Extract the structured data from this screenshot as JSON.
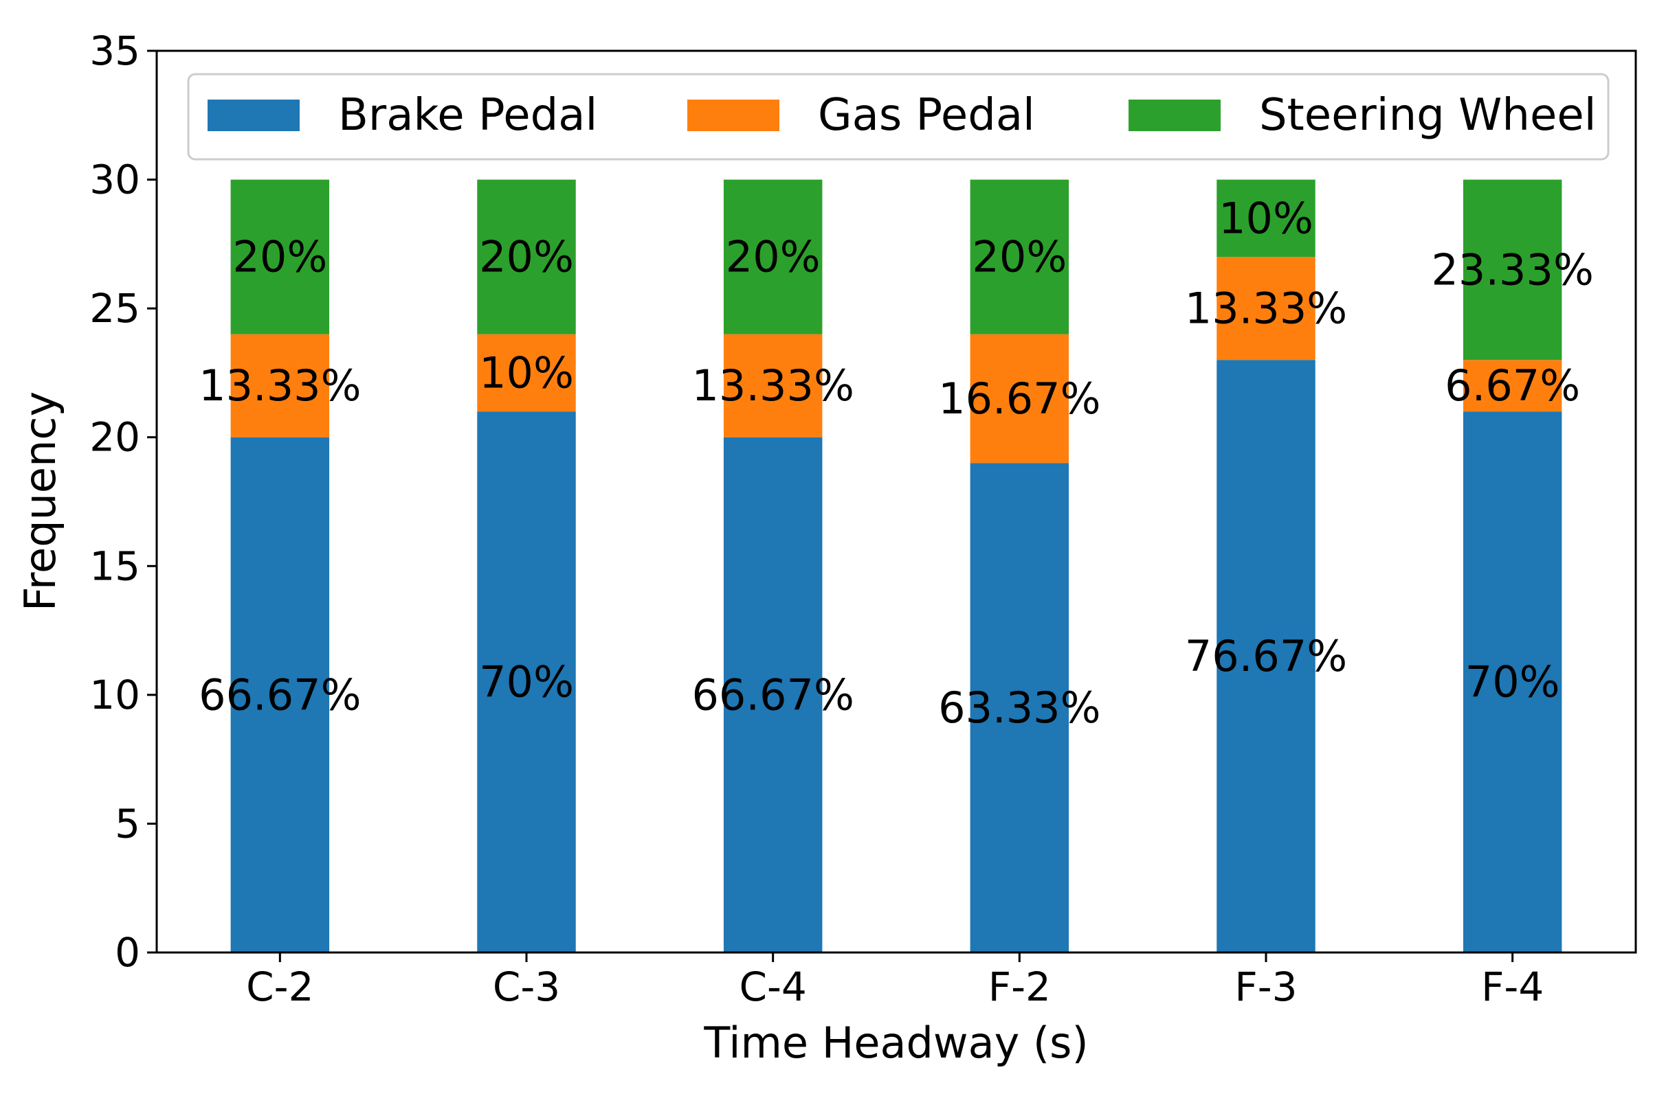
{
  "chart_data": {
    "type": "bar",
    "stacked": true,
    "title": "",
    "xlabel": "Time Headway (s)",
    "ylabel": "Frequency",
    "ylim": [
      0,
      35
    ],
    "yticks": [
      0,
      5,
      10,
      15,
      20,
      25,
      30,
      35
    ],
    "grid": false,
    "legend_position": "top",
    "categories": [
      "C-2",
      "C-3",
      "C-4",
      "F-2",
      "F-3",
      "F-4"
    ],
    "series": [
      {
        "name": "Brake Pedal",
        "color": "#1f77b4",
        "values": [
          20,
          21,
          20,
          19,
          23,
          21
        ],
        "labels": [
          "66.67%",
          "70%",
          "66.67%",
          "63.33%",
          "76.67%",
          "70%"
        ]
      },
      {
        "name": "Gas Pedal",
        "color": "#ff7f0e",
        "values": [
          4,
          3,
          4,
          5,
          4,
          2
        ],
        "labels": [
          "13.33%",
          "10%",
          "13.33%",
          "16.67%",
          "13.33%",
          "6.67%"
        ]
      },
      {
        "name": "Steering Wheel",
        "color": "#2ca02c",
        "values": [
          6,
          6,
          6,
          6,
          3,
          7
        ],
        "labels": [
          "20%",
          "20%",
          "20%",
          "20%",
          "10%",
          "23.33%"
        ]
      }
    ]
  }
}
